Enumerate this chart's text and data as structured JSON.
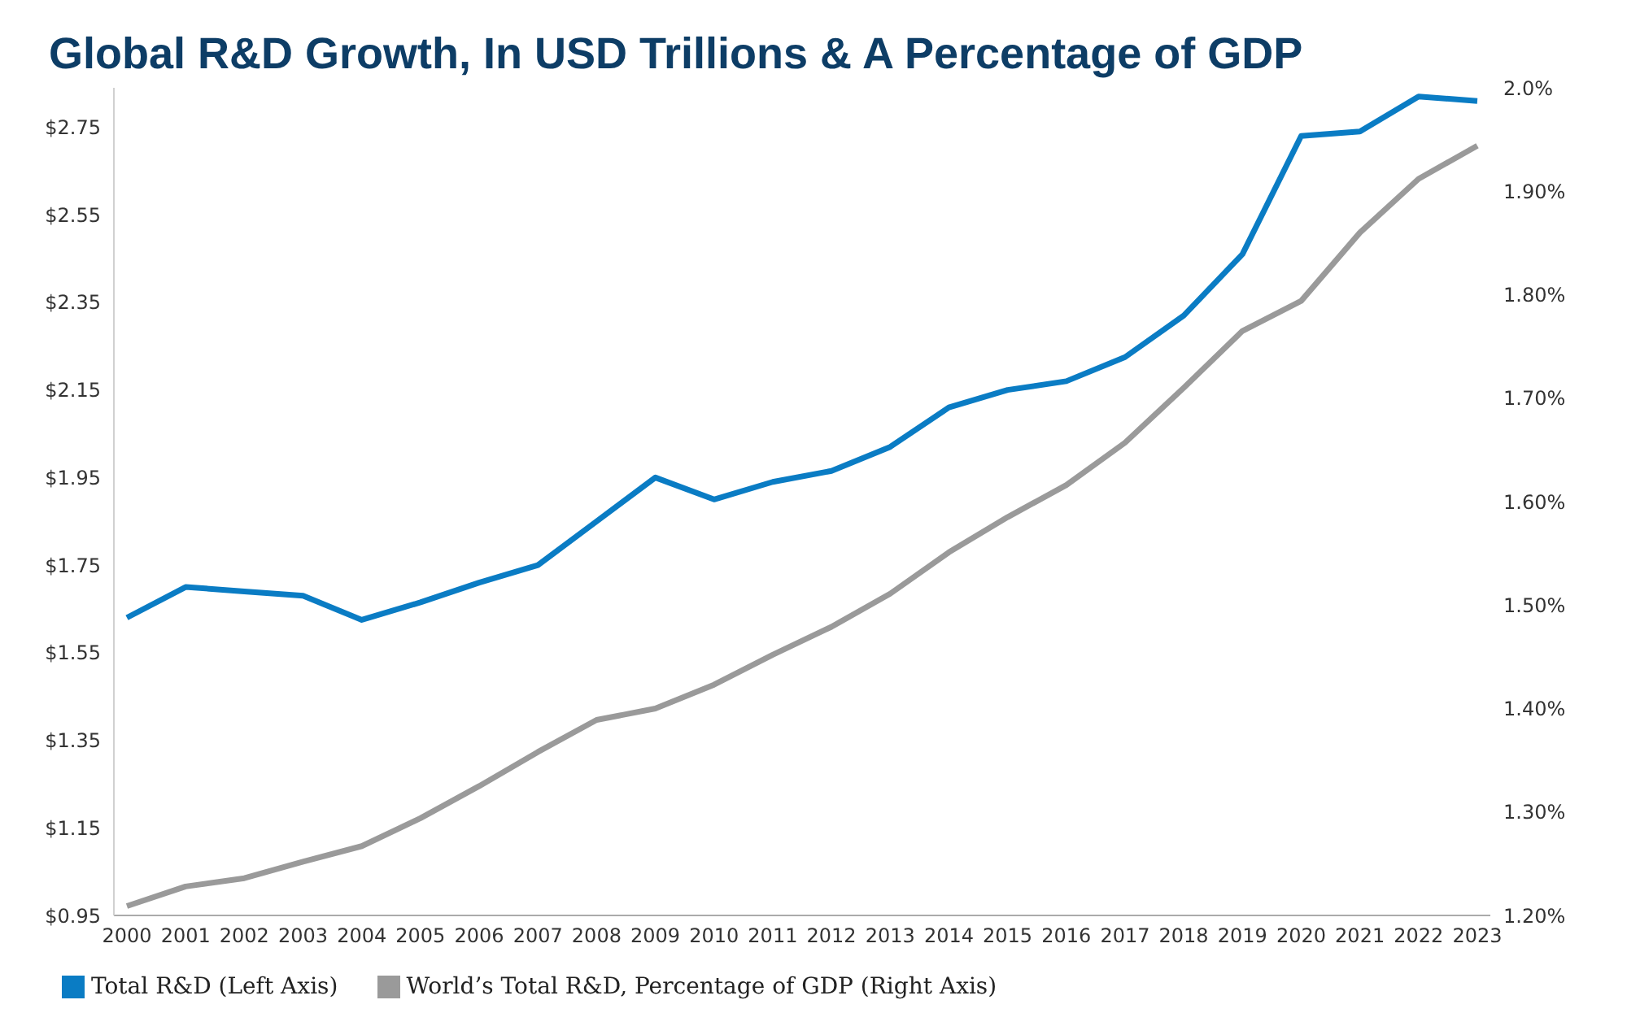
{
  "chart_data": {
    "type": "line",
    "title": "Global R&D Growth, In USD Trillions & A Percentage of GDP",
    "categories": [
      "2000",
      "2001",
      "2002",
      "2003",
      "2004",
      "2005",
      "2006",
      "2007",
      "2008",
      "2009",
      "2010",
      "2011",
      "2012",
      "2013",
      "2014",
      "2015",
      "2016",
      "2017",
      "2018",
      "2019",
      "2020",
      "2021",
      "2022",
      "2023"
    ],
    "series": [
      {
        "name": "Total R&D (Left Axis)",
        "color": "#0a7cc4",
        "values": [
          1.63,
          1.7,
          1.69,
          1.68,
          1.625,
          1.665,
          1.71,
          1.75,
          1.85,
          1.95,
          1.9,
          1.94,
          1.965,
          2.02,
          2.11,
          2.15,
          2.17,
          2.225,
          2.32,
          2.46,
          2.73,
          2.74,
          2.82,
          2.81
        ]
      },
      {
        "name": "World’s Total R&D, Percentage of GDP (Right Axis)",
        "color": "#9a9a9a",
        "axis": "y2",
        "values": [
          1.209,
          1.228,
          1.236,
          1.252,
          1.267,
          1.294,
          1.325,
          1.358,
          1.389,
          1.4,
          1.423,
          1.452,
          1.479,
          1.511,
          1.551,
          1.585,
          1.616,
          1.657,
          1.71,
          1.765,
          1.794,
          1.86,
          1.912,
          1.944
        ]
      }
    ],
    "ylim": [
      0.95,
      2.84
    ],
    "yticks": [
      {
        "value": 0.95,
        "label": "$0.95"
      },
      {
        "value": 1.15,
        "label": "$1.15"
      },
      {
        "value": 1.35,
        "label": "$1.35"
      },
      {
        "value": 1.55,
        "label": "$1.55"
      },
      {
        "value": 1.75,
        "label": "$1.75"
      },
      {
        "value": 1.95,
        "label": "$1.95"
      },
      {
        "value": 2.15,
        "label": "$2.15"
      },
      {
        "value": 2.35,
        "label": "$2.35"
      },
      {
        "value": 2.55,
        "label": "$2.55"
      },
      {
        "value": 2.75,
        "label": "$2.75"
      }
    ],
    "y2lim": [
      1.2,
      2.0
    ],
    "y2ticks": [
      {
        "value": 1.2,
        "label": "1.20%"
      },
      {
        "value": 1.3,
        "label": "1.30%"
      },
      {
        "value": 1.4,
        "label": "1.40%"
      },
      {
        "value": 1.5,
        "label": "1.50%"
      },
      {
        "value": 1.6,
        "label": "1.60%"
      },
      {
        "value": 1.7,
        "label": "1.70%"
      },
      {
        "value": 1.8,
        "label": "1.80%"
      },
      {
        "value": 1.9,
        "label": "1.90%"
      },
      {
        "value": 2.0,
        "label": "2.0%"
      }
    ],
    "grid": false,
    "legend": "bottom left",
    "marker": "none",
    "line_style": "solid"
  }
}
